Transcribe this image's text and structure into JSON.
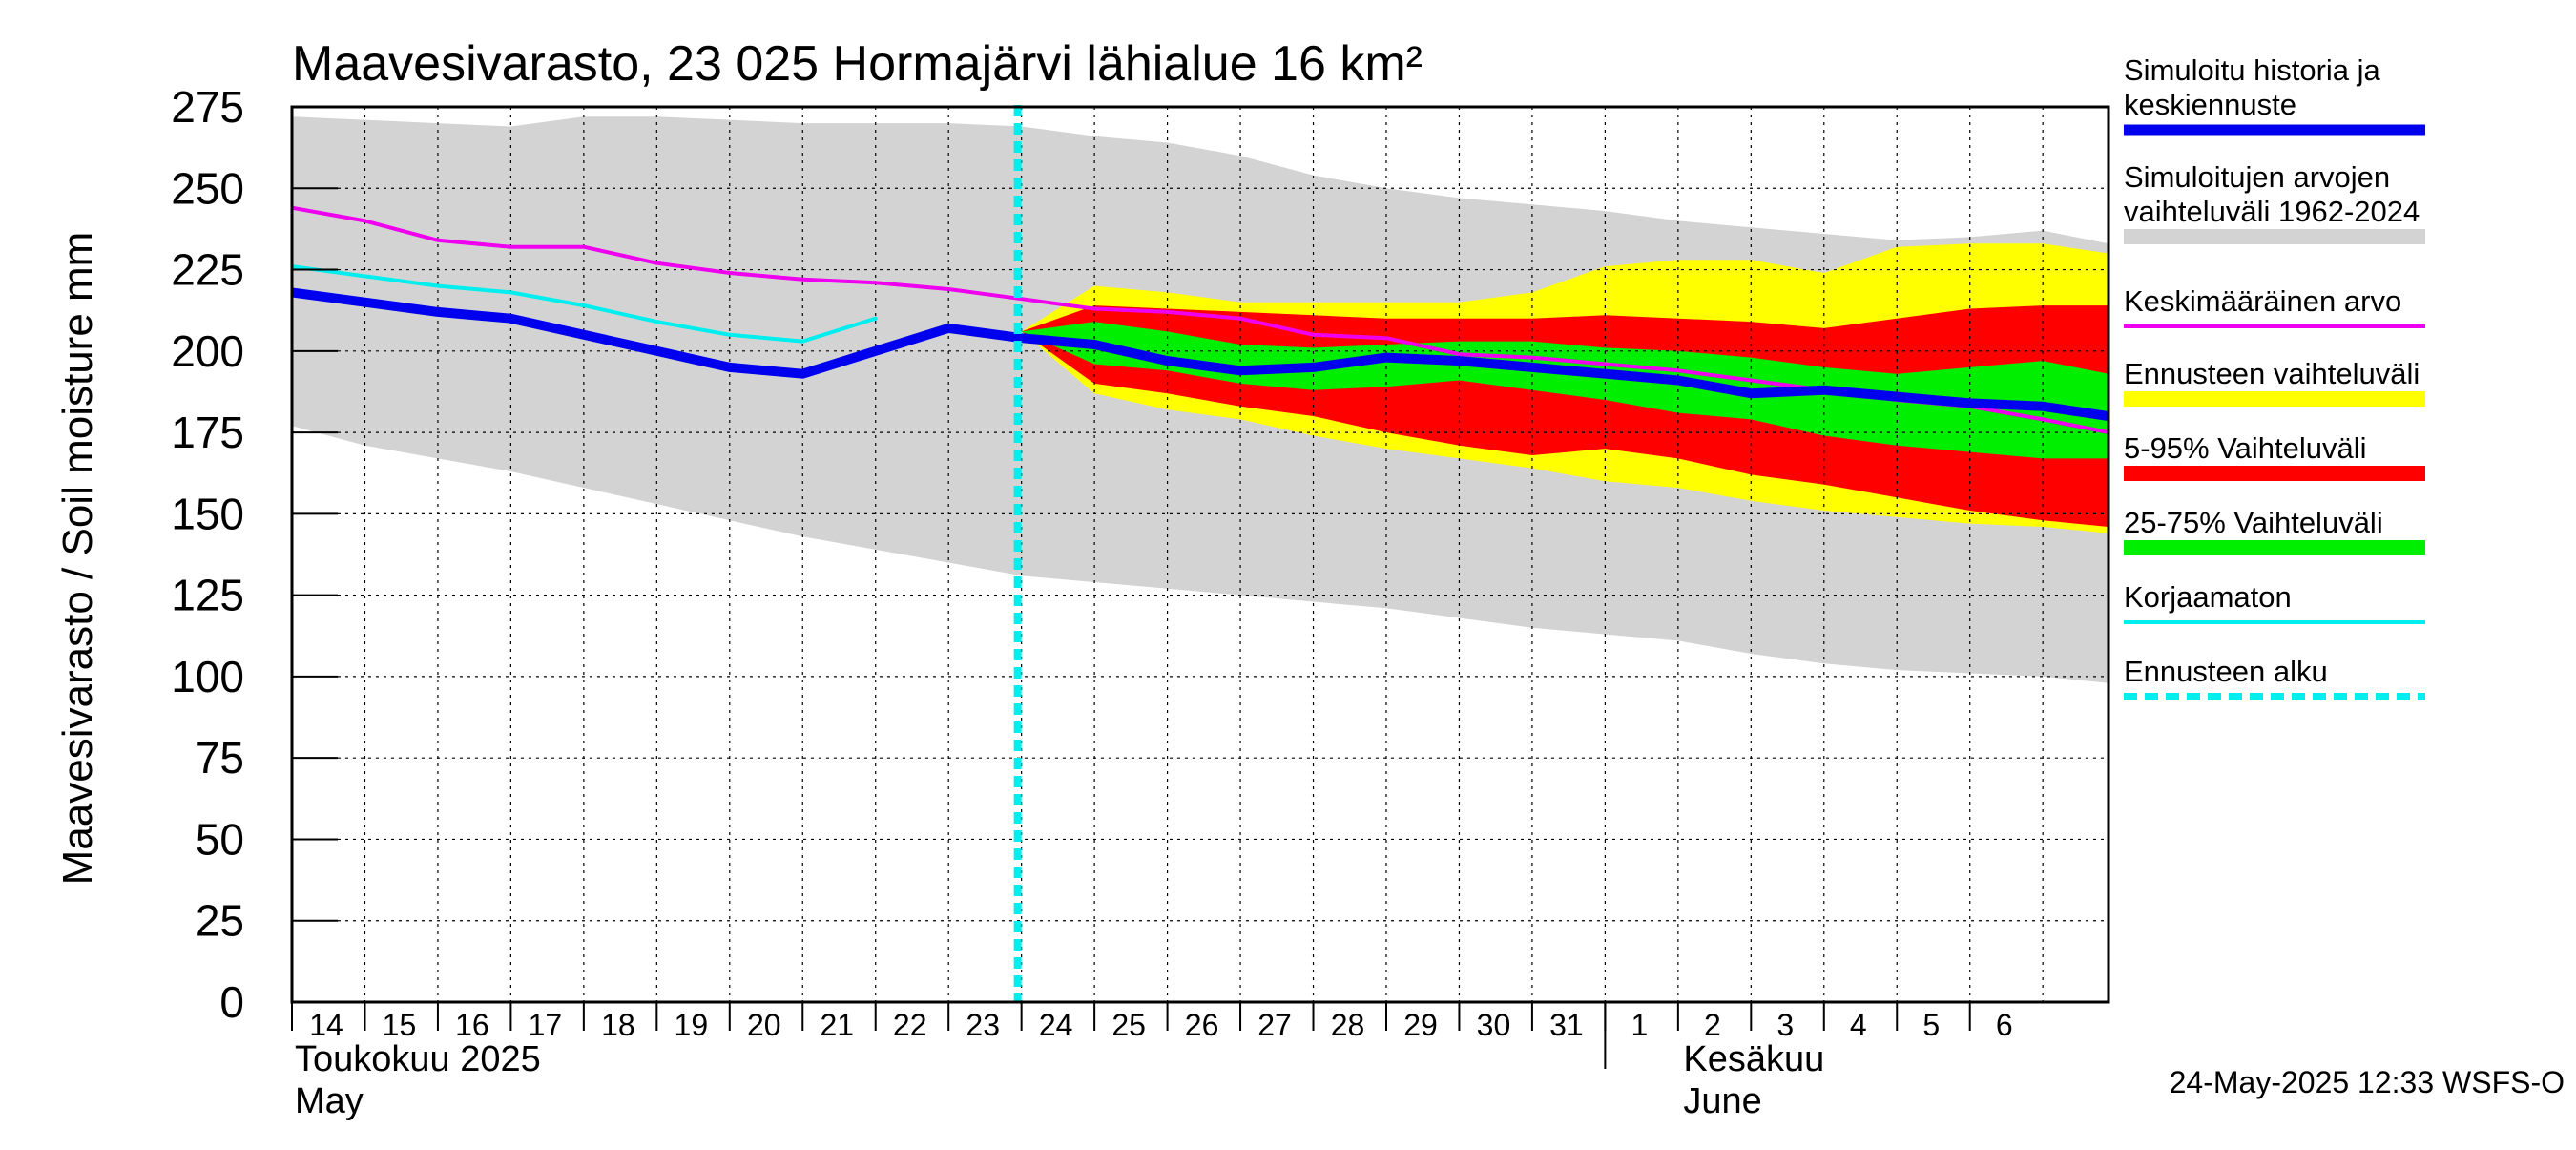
{
  "chart_data": {
    "type": "area",
    "title": "Maavesivarasto, 23 025 Hormajärvi lähialue 16 km²",
    "ylabel": "Maavesivarasto / Soil moisture   mm",
    "ylim": [
      0,
      275
    ],
    "yticks": [
      "0",
      "25",
      "50",
      "75",
      "100",
      "125",
      "150",
      "175",
      "200",
      "225",
      "250",
      "275"
    ],
    "x_start": 14,
    "x_end": 38.9,
    "x_day_labels": [
      "14",
      "15",
      "16",
      "17",
      "18",
      "19",
      "20",
      "21",
      "22",
      "23",
      "24",
      "25",
      "26",
      "27",
      "28",
      "29",
      "30",
      "31",
      "1",
      "2",
      "3",
      "4",
      "5",
      "6"
    ],
    "months": [
      {
        "name_fi": "Toukokuu  2025",
        "name_en": "May"
      },
      {
        "name_fi": "Kesäkuu",
        "name_en": "June"
      }
    ],
    "forecast_start": 24,
    "timestamp": "24-May-2025 12:33 WSFS-O",
    "series": [
      {
        "name": "Simuloitujen arvojen vaihteluväli 1962-2024",
        "color": "#d3d3d3",
        "kind": "band",
        "x": [
          14,
          15,
          16,
          17,
          18,
          19,
          20,
          21,
          22,
          23,
          24,
          25,
          26,
          27,
          28,
          29,
          30,
          31,
          32,
          33,
          34,
          35,
          36,
          37,
          38,
          38.9
        ],
        "upper": [
          272,
          271,
          270,
          269,
          272,
          272,
          271,
          270,
          270,
          270,
          269,
          266,
          264,
          260,
          254,
          250,
          247,
          245,
          243,
          240,
          238,
          236,
          234,
          235,
          237,
          233
        ],
        "lower": [
          177,
          171,
          167,
          163,
          158,
          153,
          148,
          143,
          139,
          135,
          131,
          129,
          127,
          125,
          123,
          121,
          118,
          115,
          113,
          111,
          107,
          104,
          102,
          101,
          100,
          98
        ]
      },
      {
        "name": "Ennusteen vaihteluväli",
        "color": "#ffff00",
        "kind": "band",
        "x": [
          24,
          25,
          26,
          27,
          28,
          29,
          30,
          31,
          32,
          33,
          34,
          35,
          36,
          37,
          38,
          38.9
        ],
        "upper": [
          206,
          220,
          218,
          215,
          215,
          215,
          215,
          218,
          226,
          228,
          228,
          224,
          232,
          233,
          233,
          230
        ],
        "lower": [
          206,
          187,
          182,
          179,
          174,
          170,
          167,
          164,
          160,
          158,
          154,
          151,
          149,
          147,
          146,
          144
        ]
      },
      {
        "name": "5-95% Vaihteluväli",
        "color": "#ff0000",
        "kind": "band",
        "x": [
          24,
          25,
          26,
          27,
          28,
          29,
          30,
          31,
          32,
          33,
          34,
          35,
          36,
          37,
          38,
          38.9
        ],
        "upper": [
          206,
          214,
          213,
          212,
          211,
          210,
          210,
          210,
          211,
          210,
          209,
          207,
          210,
          213,
          214,
          214
        ],
        "lower": [
          206,
          190,
          187,
          183,
          180,
          175,
          171,
          168,
          170,
          167,
          162,
          159,
          155,
          151,
          148,
          146
        ]
      },
      {
        "name": "25-75% Vaihteluväli",
        "color": "#00ee00",
        "kind": "band",
        "x": [
          24,
          25,
          26,
          27,
          28,
          29,
          30,
          31,
          32,
          33,
          34,
          35,
          36,
          37,
          38,
          38.9
        ],
        "upper": [
          206,
          209,
          206,
          202,
          201,
          202,
          203,
          203,
          201,
          200,
          198,
          195,
          193,
          195,
          197,
          193
        ],
        "lower": [
          206,
          196,
          194,
          190,
          188,
          189,
          191,
          188,
          185,
          181,
          179,
          174,
          171,
          169,
          167,
          167
        ]
      },
      {
        "name": "Keskimääräinen arvo",
        "color": "#ee00ee",
        "kind": "line",
        "width": 4,
        "x": [
          14,
          15,
          16,
          17,
          18,
          19,
          20,
          21,
          22,
          23,
          24,
          25,
          26,
          27,
          28,
          29,
          30,
          31,
          32,
          33,
          34,
          35,
          36,
          37,
          38,
          38.9
        ],
        "values": [
          244,
          240,
          234,
          232,
          232,
          227,
          224,
          222,
          221,
          219,
          216,
          213,
          212,
          210,
          205,
          204,
          199,
          198,
          196,
          194,
          191,
          188,
          185,
          183,
          179,
          175
        ]
      },
      {
        "name": "Korjaamaton",
        "color": "#00eeee",
        "kind": "line",
        "width": 4,
        "x": [
          14,
          15,
          16,
          17,
          18,
          19,
          20,
          21,
          22
        ],
        "values": [
          226,
          223,
          220,
          218,
          214,
          209,
          205,
          203,
          210
        ]
      },
      {
        "name": "Simuloitu historia ja keskiennuste",
        "color": "#0000ee",
        "kind": "line",
        "width": 10,
        "x": [
          14,
          15,
          16,
          17,
          18,
          19,
          20,
          21,
          22,
          23,
          24,
          25,
          26,
          27,
          28,
          29,
          30,
          31,
          32,
          33,
          34,
          35,
          36,
          37,
          38,
          38.9
        ],
        "values": [
          218,
          215,
          212,
          210,
          205,
          200,
          195,
          193,
          200,
          207,
          204,
          202,
          197,
          194,
          195,
          198,
          197,
          195,
          193,
          191,
          187,
          188,
          186,
          184,
          183,
          180
        ]
      }
    ],
    "legend": [
      {
        "label": "Simuloitu historia ja keskiennuste",
        "lines": [
          "Simuloitu historia ja",
          "keskiennuste"
        ],
        "color": "#0000ee",
        "style": "thick"
      },
      {
        "label": "Simuloitujen arvojen vaihteluväli 1962-2024",
        "lines": [
          "Simuloitujen arvojen",
          "vaihteluväli 1962-2024"
        ],
        "color": "#d3d3d3",
        "style": "box"
      },
      {
        "label": "Keskimääräinen arvo",
        "lines": [
          "Keskimääräinen arvo"
        ],
        "color": "#ee00ee",
        "style": "thin"
      },
      {
        "label": "Ennusteen vaihteluväli",
        "lines": [
          "Ennusteen vaihteluväli"
        ],
        "color": "#ffff00",
        "style": "box"
      },
      {
        "label": "5-95% Vaihteluväli",
        "lines": [
          "5-95% Vaihteluväli"
        ],
        "color": "#ff0000",
        "style": "box"
      },
      {
        "label": "25-75% Vaihteluväli",
        "lines": [
          "25-75% Vaihteluväli"
        ],
        "color": "#00ee00",
        "style": "box"
      },
      {
        "label": "Korjaamaton",
        "lines": [
          "Korjaamaton"
        ],
        "color": "#00eeee",
        "style": "thin"
      },
      {
        "label": "Ennusteen alku",
        "lines": [
          "Ennusteen alku"
        ],
        "color": "#00eeee",
        "style": "dashed"
      }
    ]
  }
}
